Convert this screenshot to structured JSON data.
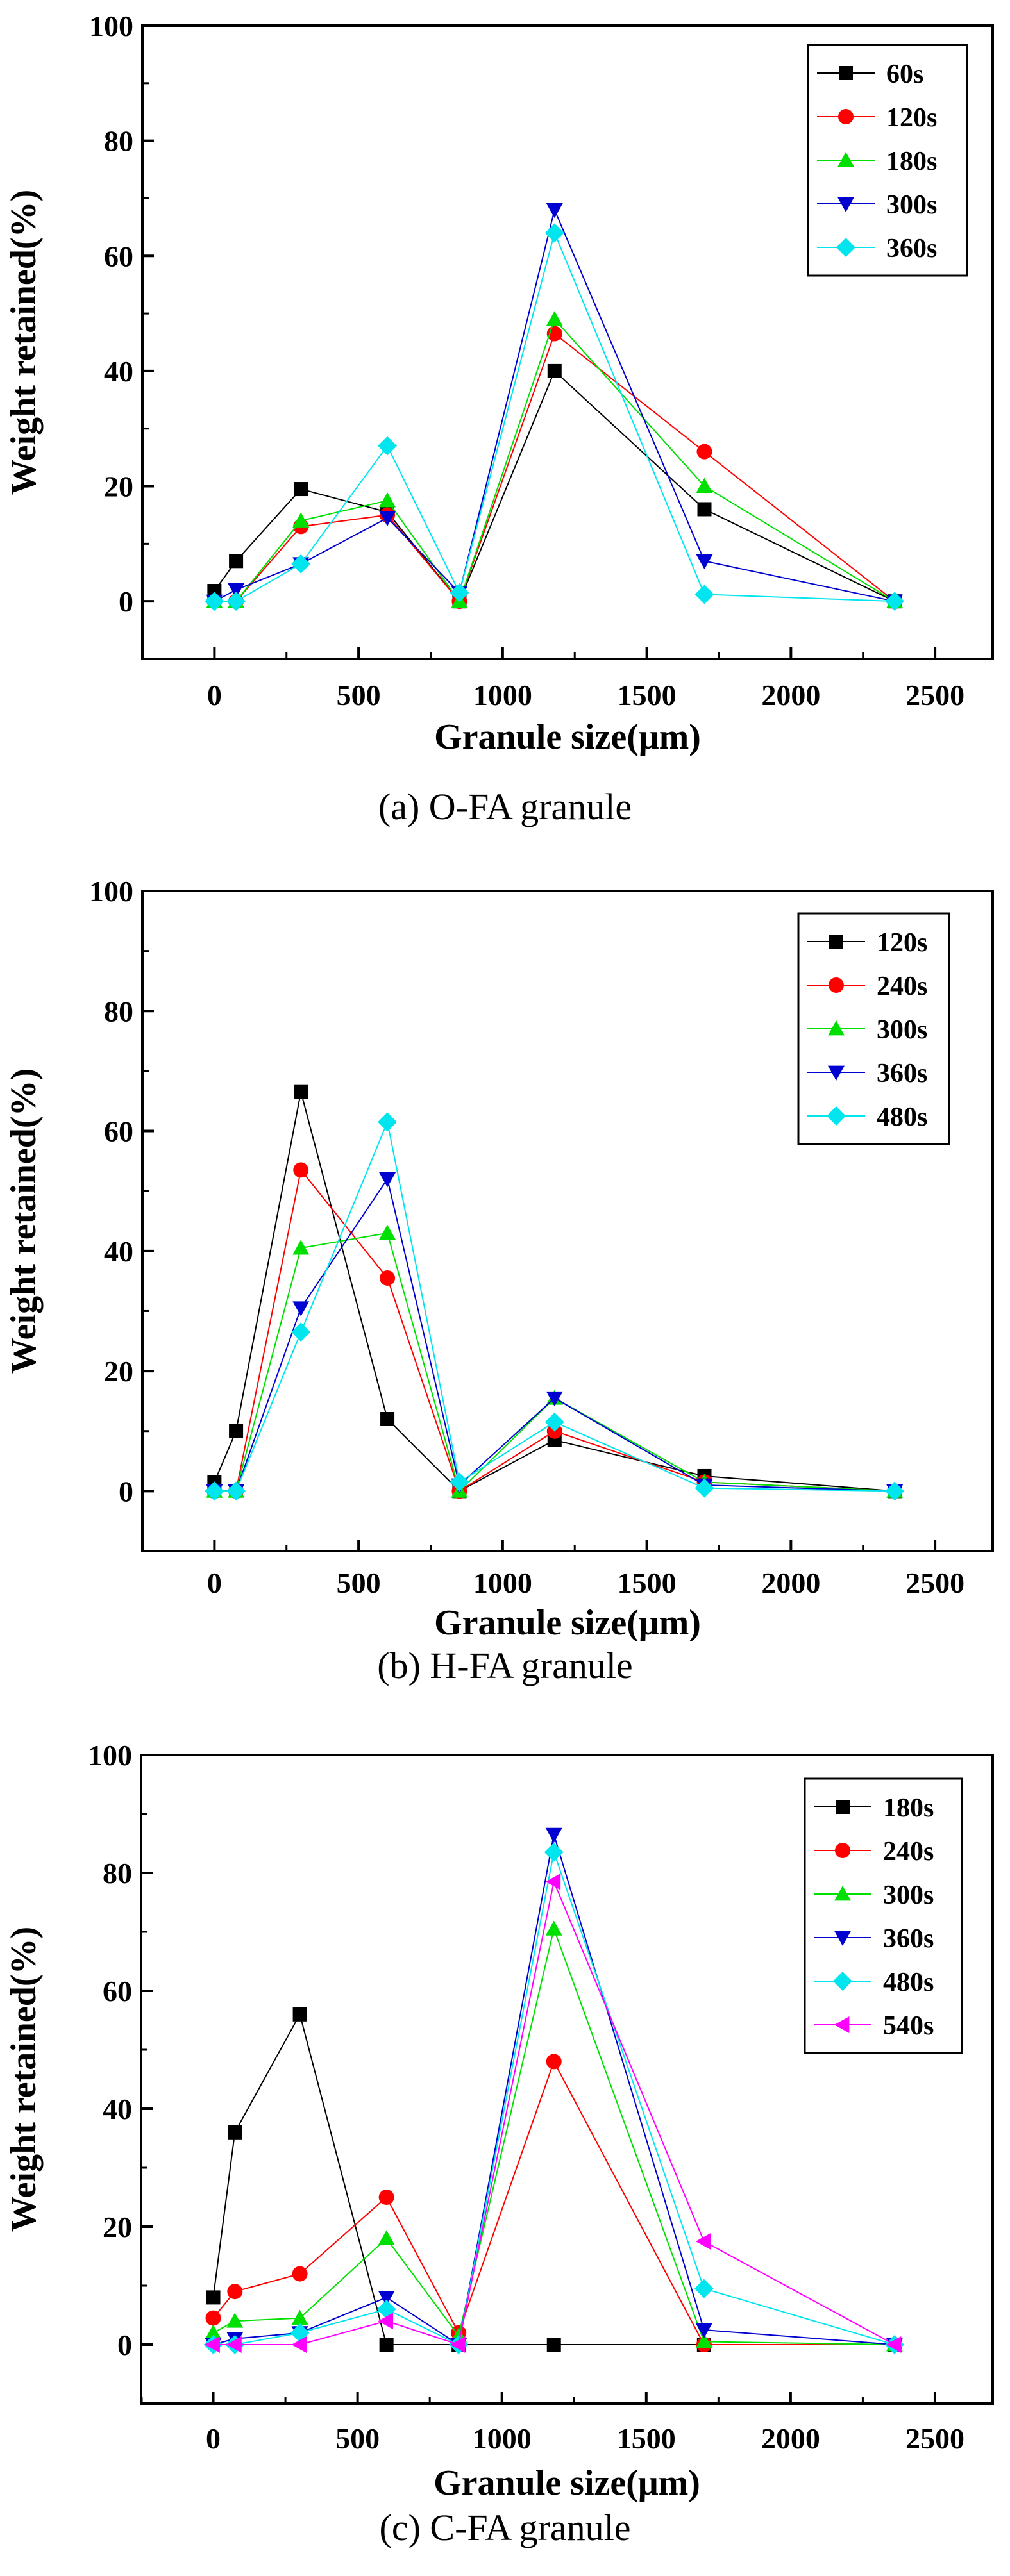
{
  "chart_data": [
    {
      "type": "line",
      "caption": "(a) O-FA granule",
      "xlabel": "Granule size(μm)",
      "ylabel": "Weight retained(%)",
      "xlim": [
        -250,
        2700
      ],
      "ylim": [
        -10,
        100
      ],
      "xticks": [
        0,
        500,
        1000,
        1500,
        2000,
        2500
      ],
      "yticks": [
        0,
        20,
        40,
        60,
        80,
        100
      ],
      "x": [
        0,
        75,
        300,
        600,
        850,
        1180,
        1700,
        2360
      ],
      "legend_position": "top-right",
      "series": [
        {
          "name": "60s",
          "color": "#000000",
          "marker": "square",
          "values": [
            1.8,
            7,
            19.5,
            15.5,
            0,
            40,
            16,
            0
          ]
        },
        {
          "name": "120s",
          "color": "#ff0000",
          "marker": "circle",
          "values": [
            0,
            0,
            13,
            15,
            0,
            46.5,
            26,
            0
          ]
        },
        {
          "name": "180s",
          "color": "#00e000",
          "marker": "triangle-up",
          "values": [
            0,
            0,
            14,
            17.5,
            0,
            49,
            20,
            0
          ]
        },
        {
          "name": "300s",
          "color": "#0000d0",
          "marker": "triangle-down",
          "values": [
            0,
            2,
            6.5,
            14.5,
            1.5,
            68,
            7,
            0
          ]
        },
        {
          "name": "360s",
          "color": "#00e5ee",
          "marker": "diamond",
          "values": [
            0,
            0,
            6.5,
            27,
            1.5,
            64,
            1.2,
            0
          ]
        }
      ]
    },
    {
      "type": "line",
      "caption": "(b) H-FA granule",
      "xlabel": "Granule size(μm)",
      "ylabel": "Weight retained(%)",
      "xlim": [
        -250,
        2700
      ],
      "ylim": [
        -10,
        100
      ],
      "xticks": [
        0,
        500,
        1000,
        1500,
        2000,
        2500
      ],
      "yticks": [
        0,
        20,
        40,
        60,
        80,
        100
      ],
      "x": [
        0,
        75,
        300,
        600,
        850,
        1180,
        1700,
        2360
      ],
      "legend_position": "top-right",
      "series": [
        {
          "name": "120s",
          "color": "#000000",
          "marker": "square",
          "values": [
            1.5,
            10,
            66.5,
            12,
            0,
            8.5,
            2.5,
            0
          ]
        },
        {
          "name": "240s",
          "color": "#ff0000",
          "marker": "circle",
          "values": [
            0,
            0,
            53.5,
            35.5,
            0,
            10,
            1.5,
            0
          ]
        },
        {
          "name": "300s",
          "color": "#00e000",
          "marker": "triangle-up",
          "values": [
            0,
            0,
            40.5,
            43,
            0,
            15.5,
            1.5,
            0
          ]
        },
        {
          "name": "360s",
          "color": "#0000d0",
          "marker": "triangle-down",
          "values": [
            0,
            0,
            30.5,
            52,
            1,
            15.5,
            1,
            0
          ]
        },
        {
          "name": "480s",
          "color": "#00e5ee",
          "marker": "diamond",
          "values": [
            0,
            0,
            26.5,
            61.5,
            1.5,
            11.5,
            0.5,
            0
          ]
        }
      ]
    },
    {
      "type": "line",
      "caption": "(c) C-FA granule",
      "xlabel": "Granule size(μm)",
      "ylabel": "Weight retained(%)",
      "xlim": [
        -250,
        2700
      ],
      "ylim": [
        -10,
        100
      ],
      "xticks": [
        0,
        500,
        1000,
        1500,
        2000,
        2500
      ],
      "yticks": [
        0,
        20,
        40,
        60,
        80,
        100
      ],
      "x": [
        0,
        75,
        300,
        600,
        850,
        1180,
        1700,
        2360
      ],
      "legend_position": "top-right",
      "series": [
        {
          "name": "180s",
          "color": "#000000",
          "marker": "square",
          "values": [
            8,
            36,
            56,
            0,
            0,
            0,
            0,
            0
          ]
        },
        {
          "name": "240s",
          "color": "#ff0000",
          "marker": "circle",
          "values": [
            4.5,
            9,
            12,
            25,
            2,
            48,
            0,
            0
          ]
        },
        {
          "name": "300s",
          "color": "#00e000",
          "marker": "triangle-up",
          "values": [
            2,
            4,
            4.5,
            18,
            1.5,
            70.5,
            0.5,
            0
          ]
        },
        {
          "name": "360s",
          "color": "#0000d0",
          "marker": "triangle-down",
          "values": [
            0,
            1,
            2,
            8,
            0,
            86.5,
            2.5,
            0
          ]
        },
        {
          "name": "480s",
          "color": "#00e5ee",
          "marker": "diamond",
          "values": [
            0,
            0,
            2,
            6,
            0,
            83.5,
            9.5,
            0
          ]
        },
        {
          "name": "540s",
          "color": "#ff00ff",
          "marker": "triangle-left",
          "values": [
            0,
            0,
            0,
            4,
            0,
            78.5,
            17.5,
            0
          ]
        }
      ]
    }
  ]
}
